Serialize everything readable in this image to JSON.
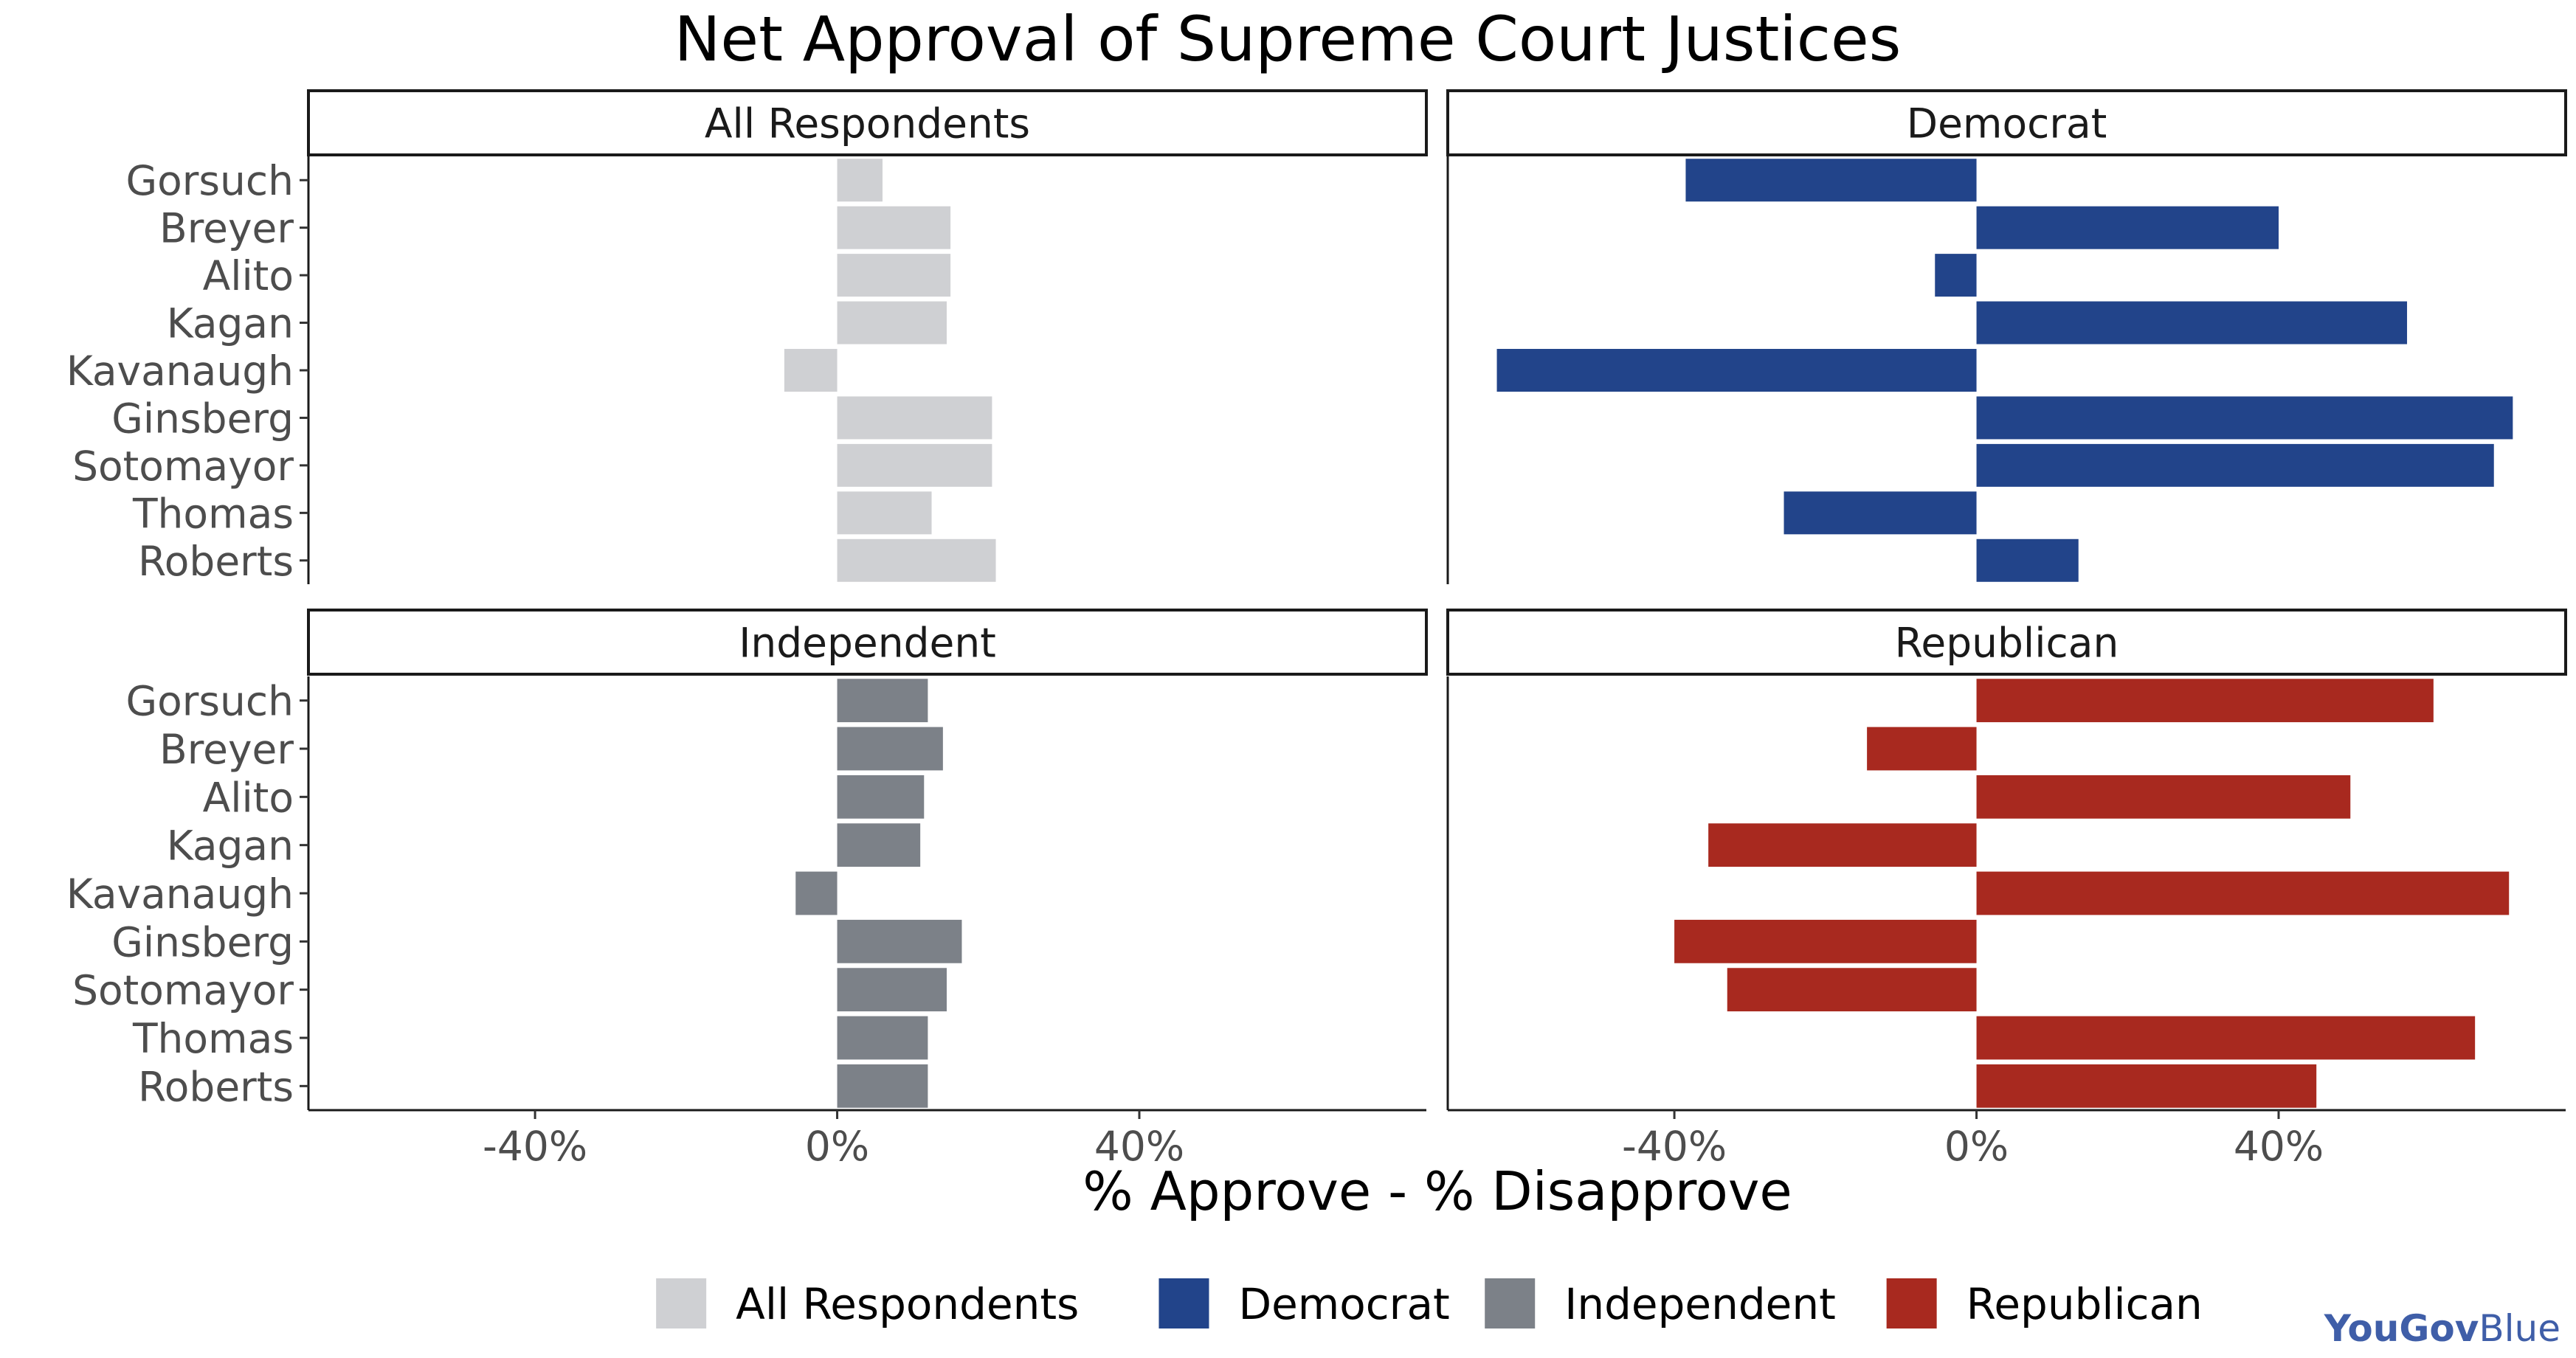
{
  "chart_data": {
    "type": "bar",
    "orientation": "horizontal",
    "title": "Net Approval of Supreme Court Justices",
    "xlabel": "% Approve - % Disapprove",
    "ylabel": "",
    "xlim": [
      -70,
      78
    ],
    "xticks": [
      -40,
      0,
      40
    ],
    "xtick_labels": [
      "-40%",
      "0%",
      "40%"
    ],
    "categories": [
      "Gorsuch",
      "Breyer",
      "Alito",
      "Kagan",
      "Kavanaugh",
      "Ginsberg",
      "Sotomayor",
      "Thomas",
      "Roberts"
    ],
    "grid": false,
    "legend_position": "bottom",
    "series": [
      {
        "name": "All Respondents",
        "color": "#cfd0d3",
        "values": [
          6,
          15,
          15,
          14.5,
          -7,
          20.5,
          20.5,
          12.5,
          21
        ]
      },
      {
        "name": "Democrat",
        "color": "#22448a",
        "values": [
          -38.5,
          40,
          -5.5,
          57,
          -63.5,
          71,
          68.5,
          -25.5,
          13.5
        ]
      },
      {
        "name": "Independent",
        "color": "#7c8188",
        "values": [
          12,
          14,
          11.5,
          11,
          -5.5,
          16.5,
          14.5,
          12,
          12
        ]
      },
      {
        "name": "Republican",
        "color": "#a8291f",
        "values": [
          60.5,
          -14.5,
          49.5,
          -35.5,
          70.5,
          -40,
          -33,
          66,
          45
        ]
      }
    ]
  },
  "legend": {
    "items": [
      "All Respondents",
      "Democrat",
      "Independent",
      "Republican"
    ]
  },
  "logo": {
    "part1": "YouGov",
    "part2": "Blue"
  }
}
